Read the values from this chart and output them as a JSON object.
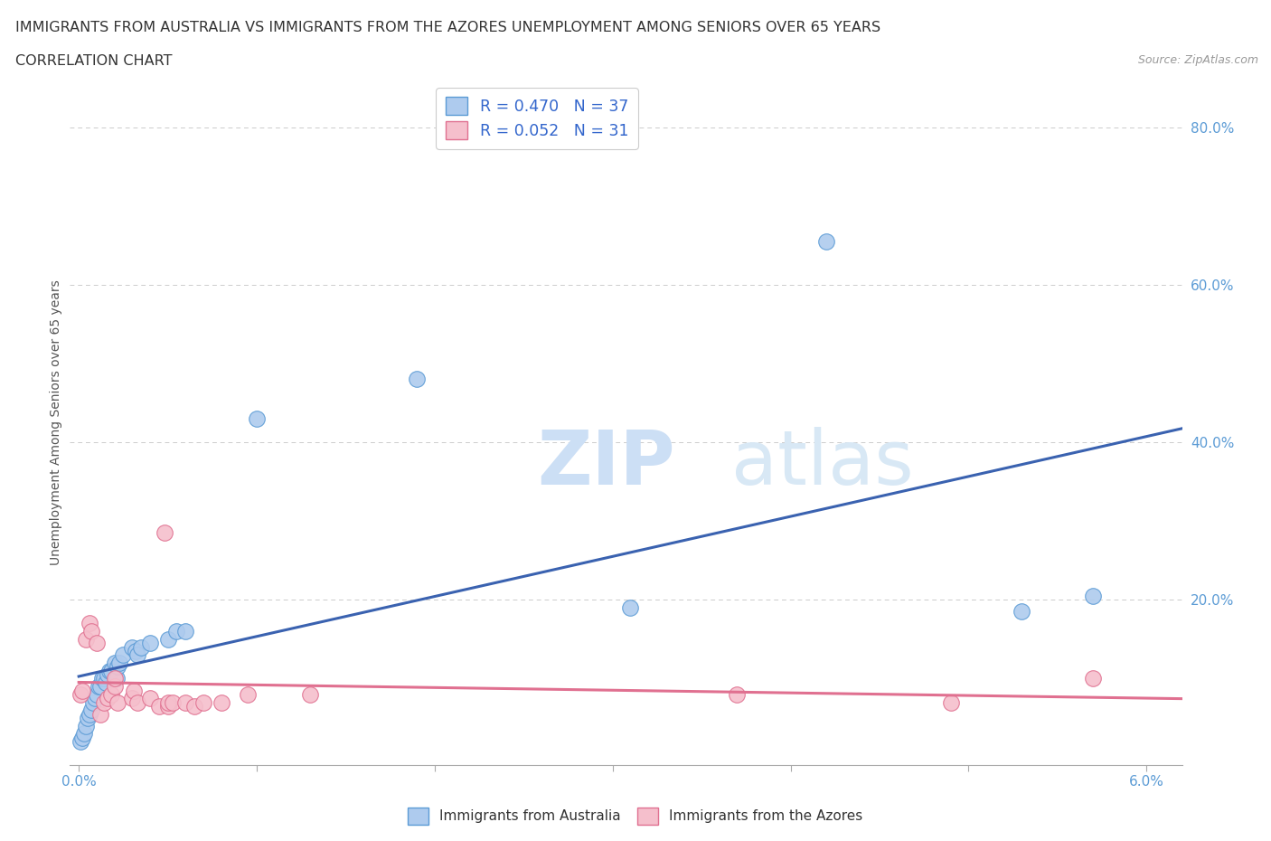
{
  "title_line1": "IMMIGRANTS FROM AUSTRALIA VS IMMIGRANTS FROM THE AZORES UNEMPLOYMENT AMONG SENIORS OVER 65 YEARS",
  "title_line2": "CORRELATION CHART",
  "source_text": "Source: ZipAtlas.com",
  "ylabel": "Unemployment Among Seniors over 65 years",
  "xlim": [
    -0.0005,
    0.062
  ],
  "ylim": [
    -0.01,
    0.86
  ],
  "xticks": [
    0.0,
    0.01,
    0.02,
    0.03,
    0.04,
    0.05,
    0.06
  ],
  "xticklabels": [
    "0.0%",
    "",
    "",
    "",
    "",
    "",
    "6.0%"
  ],
  "yticks": [
    0.0,
    0.2,
    0.4,
    0.6,
    0.8
  ],
  "yticklabels": [
    "",
    "20.0%",
    "40.0%",
    "60.0%",
    "80.0%"
  ],
  "australia_R": 0.47,
  "australia_N": 37,
  "azores_R": 0.052,
  "azores_N": 31,
  "australia_color": "#aecbee",
  "australia_edge_color": "#5b9bd5",
  "azores_color": "#f5bfcc",
  "azores_edge_color": "#e07090",
  "trend_australia_color": "#3a62b0",
  "trend_azores_color": "#e07090",
  "australia_x": [
    0.0001,
    0.0002,
    0.0003,
    0.0004,
    0.0005,
    0.0006,
    0.0007,
    0.0008,
    0.0009,
    0.001,
    0.0011,
    0.0012,
    0.0013,
    0.0014,
    0.0015,
    0.0016,
    0.0017,
    0.0018,
    0.002,
    0.0021,
    0.0022,
    0.0023,
    0.0025,
    0.003,
    0.0032,
    0.0033,
    0.0035,
    0.004,
    0.005,
    0.0055,
    0.006,
    0.01,
    0.019,
    0.031,
    0.042,
    0.053,
    0.057
  ],
  "australia_y": [
    0.02,
    0.025,
    0.03,
    0.04,
    0.05,
    0.055,
    0.06,
    0.07,
    0.075,
    0.08,
    0.09,
    0.09,
    0.1,
    0.1,
    0.095,
    0.105,
    0.11,
    0.11,
    0.12,
    0.1,
    0.115,
    0.12,
    0.13,
    0.14,
    0.135,
    0.13,
    0.14,
    0.145,
    0.15,
    0.16,
    0.16,
    0.43,
    0.48,
    0.19,
    0.655,
    0.185,
    0.205
  ],
  "azores_x": [
    0.0001,
    0.0002,
    0.0004,
    0.0006,
    0.0007,
    0.001,
    0.0012,
    0.0014,
    0.0016,
    0.0018,
    0.002,
    0.002,
    0.0022,
    0.003,
    0.0031,
    0.0033,
    0.004,
    0.0045,
    0.0048,
    0.005,
    0.005,
    0.0053,
    0.006,
    0.0065,
    0.007,
    0.008,
    0.0095,
    0.013,
    0.037,
    0.049,
    0.057
  ],
  "azores_y": [
    0.08,
    0.085,
    0.15,
    0.17,
    0.16,
    0.145,
    0.055,
    0.07,
    0.075,
    0.08,
    0.09,
    0.1,
    0.07,
    0.075,
    0.085,
    0.07,
    0.075,
    0.065,
    0.285,
    0.065,
    0.07,
    0.07,
    0.07,
    0.065,
    0.07,
    0.07,
    0.08,
    0.08,
    0.08,
    0.07,
    0.1
  ],
  "grid_color": "#cccccc",
  "background_color": "#ffffff",
  "title_fontsize": 11.5,
  "label_fontsize": 10,
  "tick_fontsize": 11,
  "legend_fontsize": 12.5
}
